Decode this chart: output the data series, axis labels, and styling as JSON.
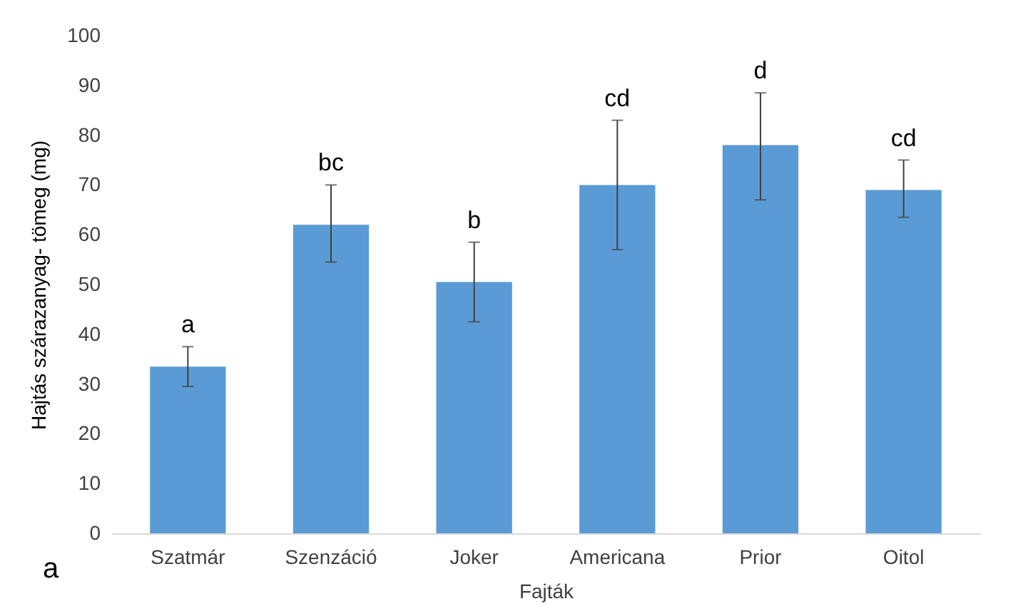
{
  "chart_data": {
    "type": "bar",
    "xlabel": "Fajták",
    "ylabel": "Hajtás szárazanyag- tömeg (mg)",
    "categories": [
      "Szatmár",
      "Szenzáció",
      "Joker",
      "Americana",
      "Prior",
      "Oitol"
    ],
    "values": [
      33.5,
      62,
      50.5,
      70,
      78,
      69
    ],
    "errors": [
      [
        29.5,
        37.5
      ],
      [
        54.5,
        70
      ],
      [
        42.5,
        58.5
      ],
      [
        57,
        83
      ],
      [
        67,
        88.5
      ],
      [
        63.5,
        75
      ]
    ],
    "color": "#5b9bd5",
    "ylim": [
      0,
      100
    ],
    "yticks": [
      0,
      10,
      20,
      30,
      40,
      50,
      60,
      70,
      80,
      90,
      100
    ],
    "grid": false,
    "annotations": [
      {
        "text": "a",
        "x": "Szatmár",
        "y": 37.5
      },
      {
        "text": "bc",
        "x": "Szenzáció",
        "y": 70
      },
      {
        "text": "b",
        "x": "Joker",
        "y": 58.5
      },
      {
        "text": "cd",
        "x": "Americana",
        "y": 83
      },
      {
        "text": "d",
        "x": "Prior",
        "y": 88.5
      },
      {
        "text": "cd",
        "x": "Oitol",
        "y": 75
      },
      "a"
    ]
  }
}
